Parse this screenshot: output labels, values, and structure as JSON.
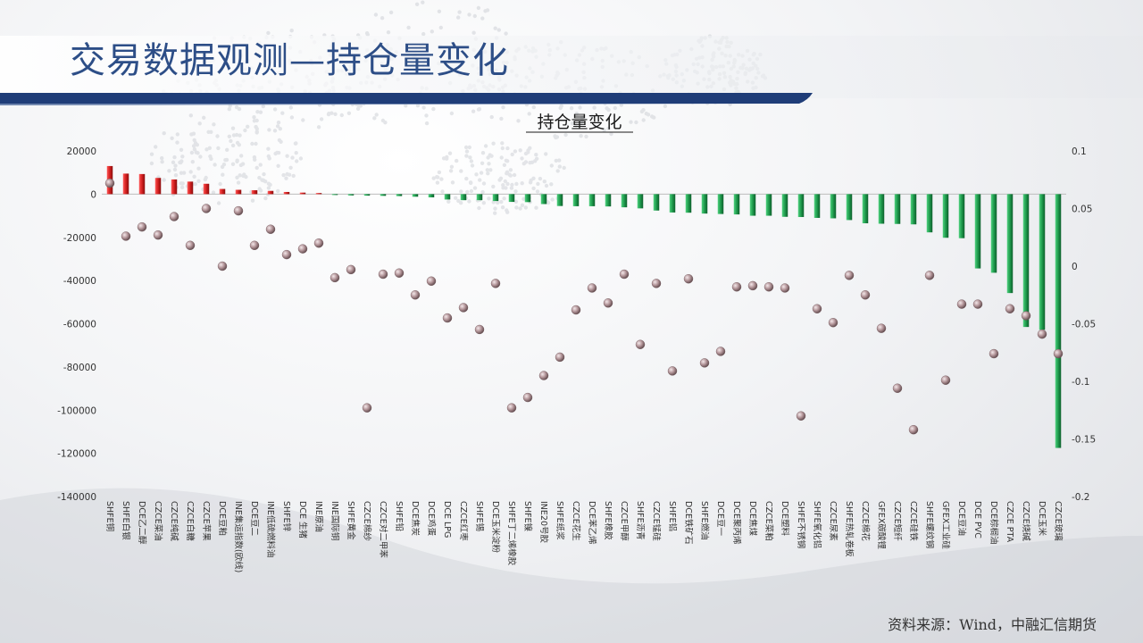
{
  "page": {
    "title": "交易数据观测—持仓量变化",
    "source": "资料来源：Wind，中融汇信期货"
  },
  "colors": {
    "title": "#2d4e87",
    "positive_bar": "#cc1a1a",
    "negative_bar": "#1e9a4c",
    "dot": "#a58c8f",
    "rule": "#1f3d78"
  },
  "chart_data": {
    "type": "bar",
    "title": "持仓量变化",
    "categories": [
      "SHFE铜",
      "SHFE白银",
      "DCE乙二醇",
      "CZCE菜油",
      "CZCE纯碱",
      "CZCE白糖",
      "CZCE苹果",
      "DCE豆粕",
      "INE集运指数(欧线)",
      "DCE豆二",
      "INE低硫燃料油",
      "SHFE锌",
      "DCE 生猪",
      "INE原油",
      "INE国际铜",
      "SHFE黄金",
      "CZCE棉纱",
      "CZCE对二甲苯",
      "SHFE铅",
      "DCE焦炭",
      "DCE鸡蛋",
      "DCE LPG",
      "CZCE红枣",
      "SHFE锡",
      "DCE玉米淀粉",
      "SHFE丁二烯橡胶",
      "SHFE镍",
      "INE20号胶",
      "SHFE纸浆",
      "CZCE花生",
      "DCE苯乙烯",
      "SHFE橡胶",
      "CZCE甲醇",
      "SHFE沥青",
      "CZCE锰硅",
      "SHFE铝",
      "DCE铁矿石",
      "SHFE燃油",
      "DCE豆一",
      "DCE聚丙烯",
      "DCE焦煤",
      "CZCE菜粕",
      "DCE塑料",
      "SHFE不锈钢",
      "SHFE氧化铝",
      "CZCE尿素",
      "SHFE热轧卷板",
      "CZCE棉花",
      "GFEX碳酸锂",
      "CZCE短纤",
      "CZCE硅铁",
      "SHFE螺纹钢",
      "GFEX工业硅",
      "DCE豆油",
      "DCE PVC",
      "DCE棕榈油",
      "CZCE PTA",
      "CZCE烧碱",
      "DCE玉米",
      "CZCE玻璃"
    ],
    "series": [
      {
        "axis": "left",
        "values": [
          13000,
          9500,
          9300,
          7500,
          6800,
          5800,
          4800,
          2400,
          2000,
          1800,
          1500,
          1000,
          700,
          500,
          -300,
          -600,
          -700,
          -800,
          -900,
          -1200,
          -1500,
          -2500,
          -2800,
          -2800,
          -3200,
          -3600,
          -3700,
          -4600,
          -5500,
          -5600,
          -5600,
          -5700,
          -6100,
          -6600,
          -7600,
          -8500,
          -8600,
          -9000,
          -9200,
          -9400,
          -10000,
          -10000,
          -10500,
          -10600,
          -11000,
          -11200,
          -12000,
          -13500,
          -13700,
          -13800,
          -14000,
          -17700,
          -20200,
          -20400,
          -34400,
          -36400,
          -45800,
          -61500,
          -62800,
          -117500
        ]
      },
      {
        "axis": "right",
        "values": [
          0.072,
          0.026,
          0.034,
          0.027,
          0.043,
          0.018,
          0.05,
          0,
          0.048,
          0.018,
          0.032,
          0.01,
          0.015,
          0.02,
          -0.01,
          -0.003,
          -0.123,
          -0.007,
          -0.006,
          -0.025,
          -0.013,
          -0.045,
          -0.036,
          -0.055,
          -0.015,
          -0.123,
          -0.114,
          -0.095,
          -0.079,
          -0.038,
          -0.019,
          -0.032,
          -0.007,
          -0.068,
          -0.015,
          -0.091,
          -0.011,
          -0.084,
          -0.074,
          -0.018,
          -0.017,
          -0.018,
          -0.019,
          -0.13,
          -0.037,
          -0.049,
          -0.008,
          -0.025,
          -0.054,
          -0.106,
          -0.142,
          -0.008,
          -0.099,
          -0.033,
          -0.033,
          -0.076,
          -0.037,
          -0.043,
          -0.059,
          -0.076
        ]
      }
    ],
    "ylim": [
      -140000,
      20000
    ],
    "y_ticks": [
      20000,
      0,
      -20000,
      -40000,
      -60000,
      -80000,
      -100000,
      -120000,
      -140000
    ],
    "y2lim": [
      -0.2,
      0.1
    ],
    "y2_ticks": [
      0.1,
      0.05,
      0,
      -0.05,
      -0.1,
      -0.15,
      -0.2
    ],
    "grid": false,
    "legend": "none"
  }
}
